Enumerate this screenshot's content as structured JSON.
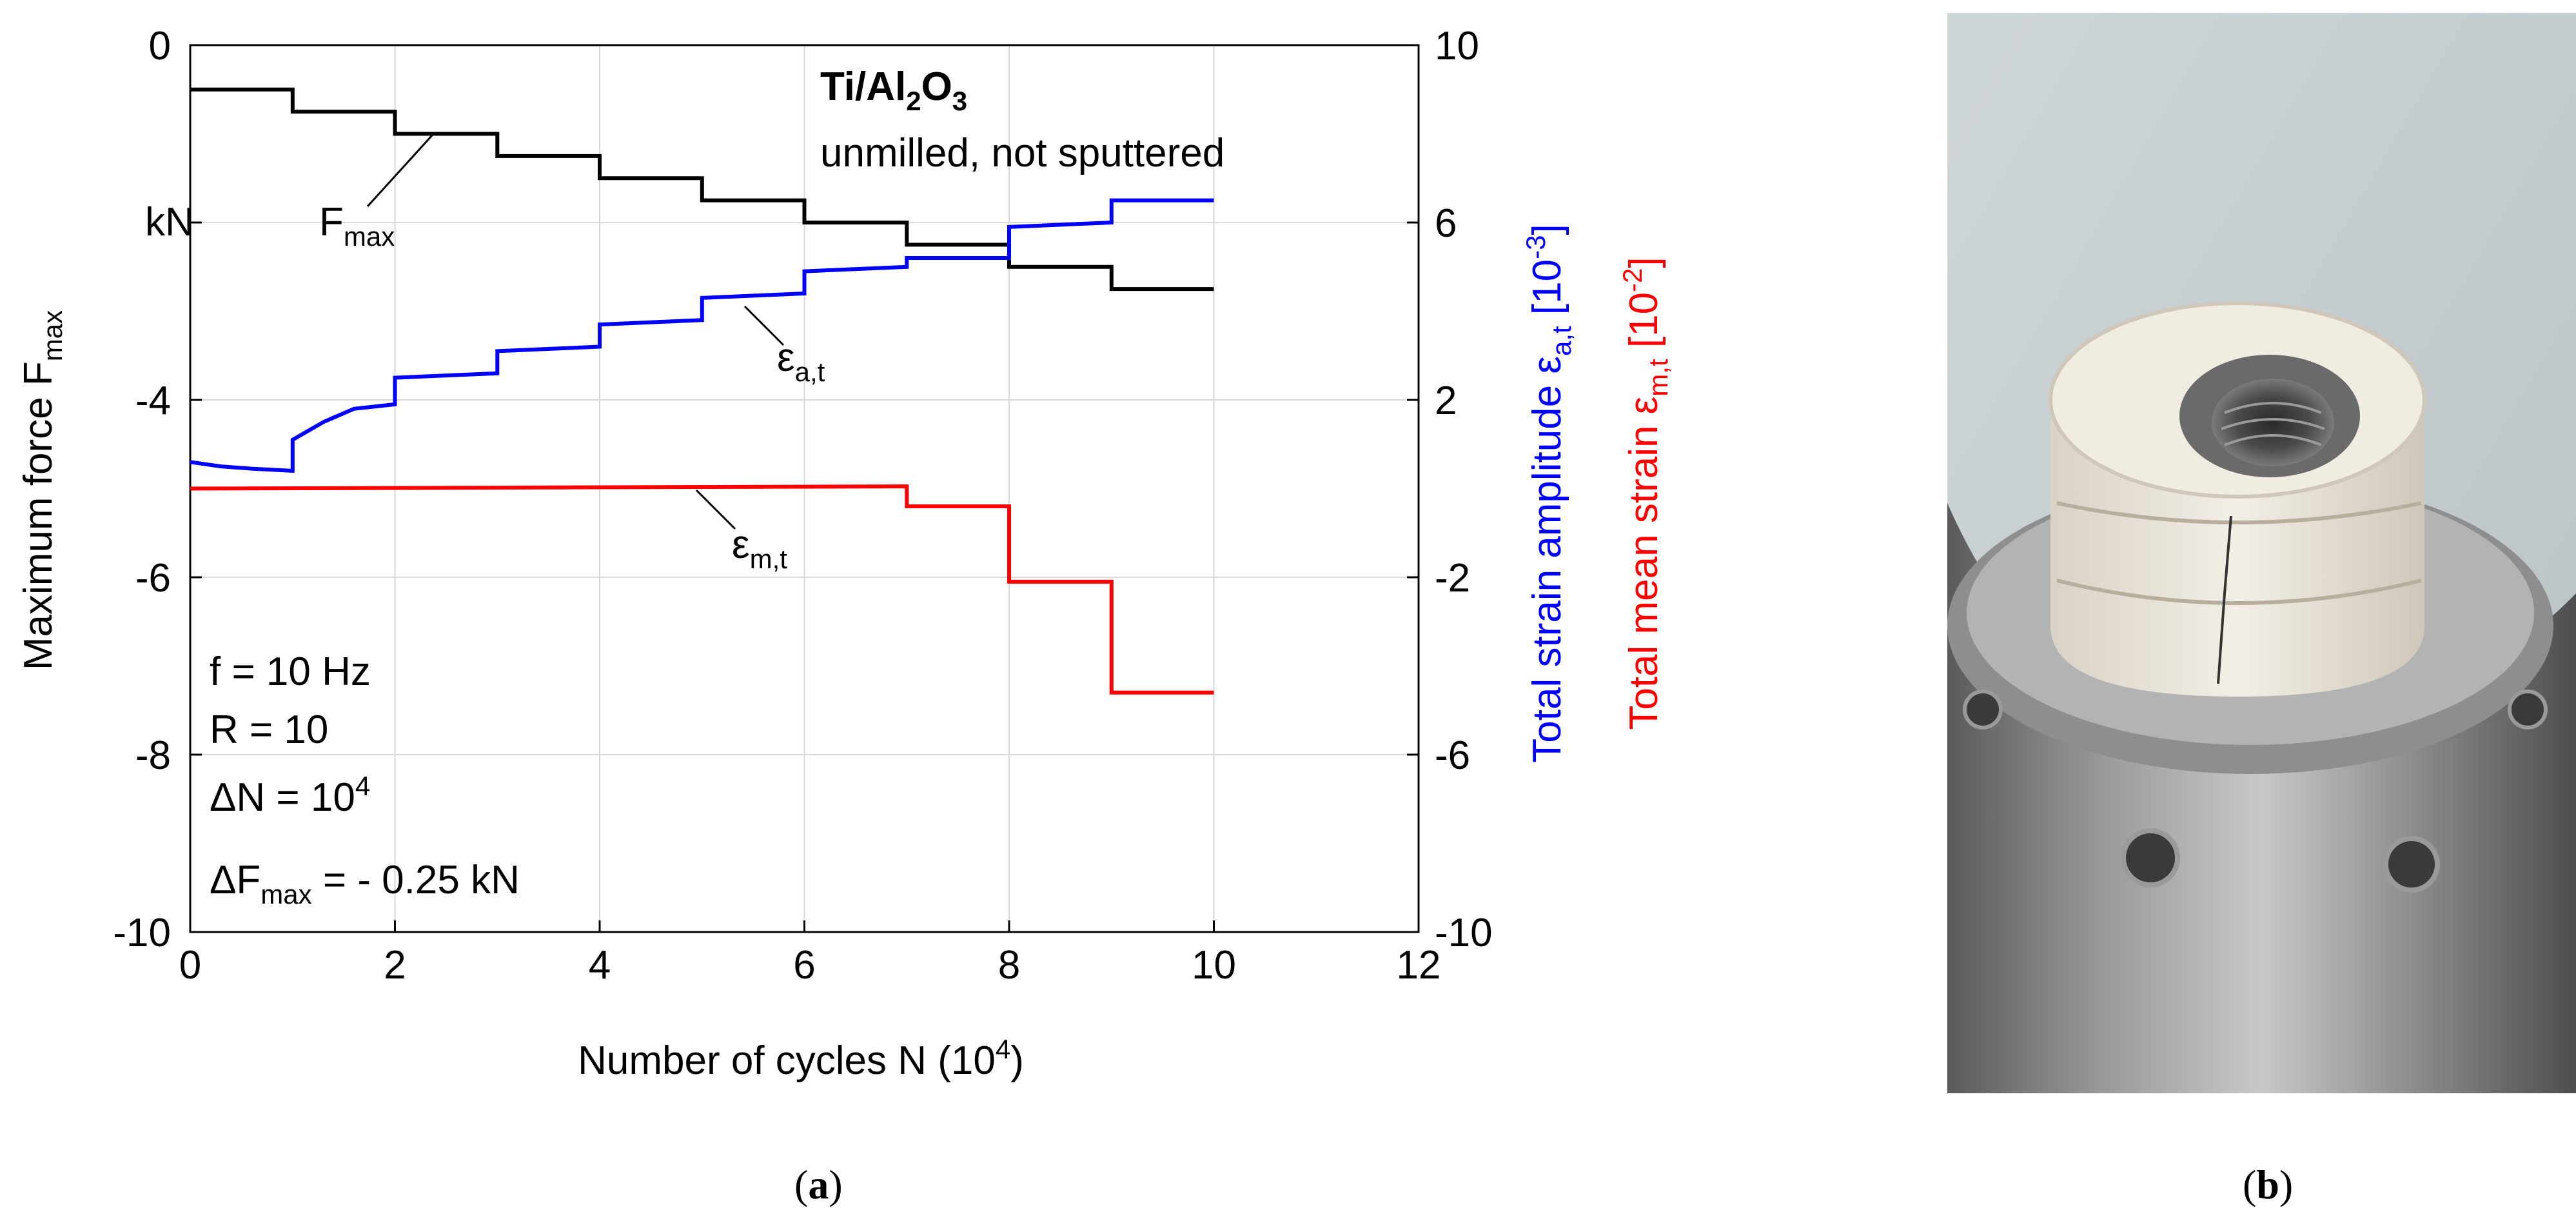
{
  "figure": {
    "caption_a": "a",
    "caption_b": "b"
  },
  "annotations": {
    "material_main": "Ti/Al",
    "material_sub": "2",
    "material_main2": "O",
    "material_sub2": "3",
    "condition": "unmilled, not sputtered",
    "fmax_label": "F",
    "fmax_sub": "max",
    "eps_a_label": "ε",
    "eps_a_sub": "a,t",
    "eps_m_label": "ε",
    "eps_m_sub": "m,t",
    "kn_unit": "kN",
    "params": {
      "f": "f = 10 Hz",
      "r": "R = 10",
      "dn_prefix": "ΔN = 10",
      "dn_exp": "4",
      "dfmax_prefix": "ΔF",
      "dfmax_sub": "max",
      "dfmax_suffix": " = - 0.25 kN"
    }
  },
  "chart_data": {
    "type": "line",
    "xlabel_prefix": "Number of cycles N (10",
    "xlabel_exp": "4",
    "xlabel_suffix": ")",
    "ylabel_left_prefix": "Maximum force F",
    "ylabel_left_sub": "max",
    "ylabel_right1_prefix": "Total strain amplitude ε",
    "ylabel_right1_sub": "a,t",
    "ylabel_right1_unit_pre": "  [10",
    "ylabel_right1_unit_exp": "-3",
    "ylabel_right1_unit_post": "]",
    "ylabel_right2_prefix": "Total mean strain ε",
    "ylabel_right2_sub": "m,t",
    "ylabel_right2_unit_pre": "  [10",
    "ylabel_right2_unit_exp": "-2",
    "ylabel_right2_unit_post": "]",
    "xlim": [
      0,
      12
    ],
    "ylim_left": [
      -10,
      0
    ],
    "ylim_right": [
      -10,
      10
    ],
    "x_ticks": [
      "0",
      "2",
      "4",
      "6",
      "8",
      "10",
      "12"
    ],
    "y_left_ticks": [
      "0",
      "",
      "-4",
      "-6",
      "-8",
      "-10"
    ],
    "y_right_ticks": [
      "10",
      "6",
      "2",
      "-2",
      "-6",
      "-10"
    ],
    "grid": true,
    "series": [
      {
        "name": "F_max",
        "axis": "left",
        "color": "#000000",
        "x": [
          0,
          1,
          1,
          2,
          2,
          3,
          3,
          4,
          4,
          5,
          5,
          6,
          6,
          7,
          7,
          8,
          8,
          9,
          9,
          10
        ],
        "y": [
          -0.5,
          -0.5,
          -0.75,
          -0.75,
          -1.0,
          -1.0,
          -1.25,
          -1.25,
          -1.5,
          -1.5,
          -1.75,
          -1.75,
          -2.0,
          -2.0,
          -2.25,
          -2.25,
          -2.5,
          -2.5,
          -2.75,
          -2.75
        ]
      },
      {
        "name": "eps_a_t",
        "axis": "right",
        "color": "#0000ff",
        "x": [
          0,
          0.3,
          0.6,
          1.0,
          1.0,
          1.3,
          1.6,
          2.0,
          2.0,
          3.0,
          3.0,
          4.0,
          4.0,
          5.0,
          5.0,
          6.0,
          6.0,
          7.0,
          7.0,
          8.0,
          8.0,
          9.0,
          9.0,
          10.0
        ],
        "y": [
          0.6,
          0.5,
          0.45,
          0.4,
          1.1,
          1.5,
          1.8,
          1.9,
          2.5,
          2.6,
          3.1,
          3.2,
          3.7,
          3.8,
          4.3,
          4.4,
          4.9,
          5.0,
          5.2,
          5.2,
          5.9,
          6.0,
          6.5,
          6.5
        ]
      },
      {
        "name": "eps_m_t",
        "axis": "right",
        "color": "#ff0000",
        "x": [
          0,
          7,
          7,
          8,
          8,
          9,
          9,
          10
        ],
        "y": [
          0.0,
          0.05,
          -0.4,
          -0.4,
          -2.1,
          -2.1,
          -4.6,
          -4.6
        ]
      }
    ]
  }
}
